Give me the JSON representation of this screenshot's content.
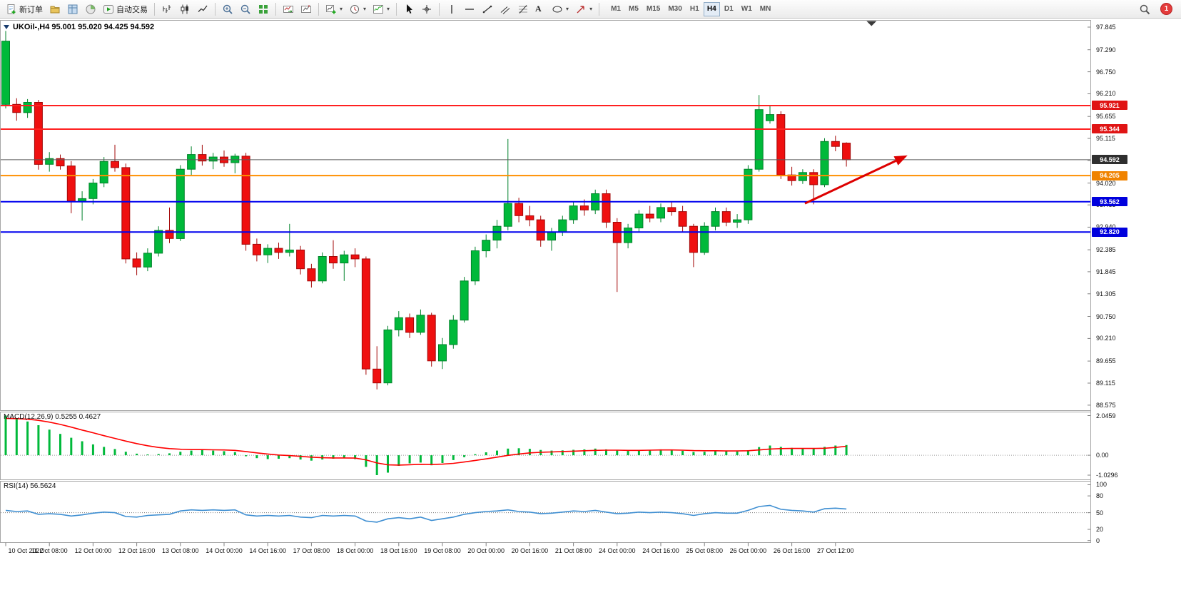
{
  "toolbar": {
    "items": [
      {
        "name": "new-order",
        "icon": "new-order",
        "label": "新订单"
      },
      {
        "name": "navigator",
        "icon": "navigator"
      },
      {
        "name": "market-watch",
        "icon": "market-watch"
      },
      {
        "name": "strategy-tester",
        "icon": "strategy-tester"
      },
      {
        "name": "auto-trading",
        "icon": "auto-trading",
        "label": "自动交易"
      },
      {
        "sep": true
      },
      {
        "name": "bar-chart-mode",
        "icon": "bar-chart"
      },
      {
        "name": "candlestick-mode",
        "icon": "candlestick"
      },
      {
        "name": "line-chart-mode",
        "icon": "line-chart"
      },
      {
        "sep": true
      },
      {
        "name": "zoom-in",
        "icon": "zoom-in"
      },
      {
        "name": "zoom-out",
        "icon": "zoom-out"
      },
      {
        "name": "tile-windows",
        "icon": "tile-windows"
      },
      {
        "sep": true
      },
      {
        "name": "auto-scroll",
        "icon": "auto-scroll"
      },
      {
        "name": "chart-shift",
        "icon": "chart-shift"
      },
      {
        "sep": true
      },
      {
        "name": "new-chart",
        "icon": "new-chart",
        "caret": true
      },
      {
        "name": "profiles",
        "icon": "clock",
        "caret": true
      },
      {
        "name": "indicators",
        "icon": "indicators",
        "caret": true
      },
      {
        "sep": true
      },
      {
        "name": "cursor-tool",
        "icon": "cursor"
      },
      {
        "name": "crosshair-tool",
        "icon": "crosshair"
      },
      {
        "sep": true
      },
      {
        "name": "vertical-line-tool",
        "icon": "vline"
      },
      {
        "name": "horizontal-line-tool",
        "icon": "hline"
      },
      {
        "name": "trendline-tool",
        "icon": "trendline"
      },
      {
        "name": "channel-tool",
        "icon": "channel"
      },
      {
        "name": "fibonacci-tool",
        "icon": "fibo"
      },
      {
        "name": "text-tool",
        "label": "A"
      },
      {
        "name": "shapes-tool",
        "icon": "ellipse",
        "caret": true
      },
      {
        "name": "arrows-tool",
        "icon": "arrow",
        "caret": true
      },
      {
        "sep": true
      }
    ],
    "timeframes": [
      "M1",
      "M5",
      "M15",
      "M30",
      "H1",
      "H4",
      "D1",
      "W1",
      "MN"
    ],
    "active_timeframe": "H4",
    "notification_count": "1"
  },
  "chart": {
    "title": "UKOil-,H4 95.001 95.020 94.425 94.592"
  },
  "chart_data": {
    "type": "candlestick",
    "symbol": "UKOil-",
    "period": "H4",
    "ohlc_display": {
      "open": "95.001",
      "high": "95.020",
      "low": "94.425",
      "close": "94.592"
    },
    "ylim": [
      88.45,
      98.02
    ],
    "price_axis_ticks": [
      "97.845",
      "97.290",
      "96.750",
      "96.210",
      "95.655",
      "95.115",
      "94.575",
      "94.020",
      "93.485",
      "92.940",
      "92.385",
      "91.845",
      "91.305",
      "90.750",
      "90.210",
      "89.655",
      "89.115",
      "88.575"
    ],
    "x_labels": [
      "10 Oct 2022",
      "11 Oct 08:00",
      "12 Oct 00:00",
      "12 Oct 16:00",
      "13 Oct 08:00",
      "14 Oct 00:00",
      "14 Oct 16:00",
      "17 Oct 08:00",
      "18 Oct 00:00",
      "18 Oct 16:00",
      "19 Oct 08:00",
      "20 Oct 00:00",
      "20 Oct 16:00",
      "21 Oct 08:00",
      "24 Oct 00:00",
      "24 Oct 16:00",
      "25 Oct 08:00",
      "26 Oct 00:00",
      "26 Oct 16:00",
      "27 Oct 12:00"
    ],
    "label_every_n_bars": 4,
    "candles": [
      [
        95.95,
        97.75,
        95.85,
        97.5
      ],
      [
        95.95,
        96.1,
        95.55,
        95.75
      ],
      [
        95.75,
        96.08,
        95.62,
        96.0
      ],
      [
        96.0,
        96.06,
        94.35,
        94.48
      ],
      [
        94.48,
        94.78,
        94.3,
        94.62
      ],
      [
        94.62,
        94.72,
        94.35,
        94.44
      ],
      [
        94.44,
        94.56,
        93.28,
        93.58
      ],
      [
        93.58,
        93.82,
        93.1,
        93.64
      ],
      [
        93.64,
        94.12,
        93.5,
        94.02
      ],
      [
        94.02,
        94.66,
        93.92,
        94.55
      ],
      [
        94.55,
        94.96,
        94.3,
        94.4
      ],
      [
        94.4,
        94.5,
        92.05,
        92.16
      ],
      [
        92.16,
        92.32,
        91.76,
        91.96
      ],
      [
        91.96,
        92.42,
        91.86,
        92.3
      ],
      [
        92.3,
        92.96,
        92.22,
        92.86
      ],
      [
        92.86,
        93.42,
        92.55,
        92.66
      ],
      [
        92.66,
        94.46,
        92.6,
        94.36
      ],
      [
        94.36,
        94.92,
        94.22,
        94.72
      ],
      [
        94.72,
        94.96,
        94.45,
        94.56
      ],
      [
        94.56,
        94.76,
        94.36,
        94.66
      ],
      [
        94.66,
        94.82,
        94.42,
        94.52
      ],
      [
        94.52,
        94.74,
        94.26,
        94.68
      ],
      [
        94.68,
        94.76,
        92.36,
        92.52
      ],
      [
        92.52,
        92.66,
        92.1,
        92.26
      ],
      [
        92.26,
        92.52,
        92.06,
        92.42
      ],
      [
        92.42,
        92.56,
        92.16,
        92.32
      ],
      [
        92.32,
        93.02,
        92.22,
        92.38
      ],
      [
        92.38,
        92.48,
        91.78,
        91.92
      ],
      [
        91.92,
        92.04,
        91.46,
        91.62
      ],
      [
        91.62,
        92.32,
        91.56,
        92.22
      ],
      [
        92.22,
        92.62,
        91.92,
        92.06
      ],
      [
        92.06,
        92.36,
        91.62,
        92.26
      ],
      [
        92.26,
        92.42,
        91.96,
        92.16
      ],
      [
        92.16,
        92.22,
        89.32,
        89.46
      ],
      [
        89.46,
        90.02,
        88.96,
        89.12
      ],
      [
        89.12,
        90.52,
        89.06,
        90.42
      ],
      [
        90.42,
        90.88,
        90.26,
        90.72
      ],
      [
        90.72,
        90.82,
        90.22,
        90.36
      ],
      [
        90.36,
        90.92,
        90.3,
        90.78
      ],
      [
        90.78,
        90.84,
        89.52,
        89.66
      ],
      [
        89.66,
        90.22,
        89.46,
        90.06
      ],
      [
        90.06,
        90.78,
        89.96,
        90.66
      ],
      [
        90.66,
        91.72,
        90.6,
        91.62
      ],
      [
        91.62,
        92.46,
        91.52,
        92.36
      ],
      [
        92.36,
        92.76,
        92.2,
        92.62
      ],
      [
        92.62,
        93.12,
        92.42,
        92.96
      ],
      [
        92.96,
        95.1,
        92.86,
        93.52
      ],
      [
        93.52,
        93.66,
        93.06,
        93.22
      ],
      [
        93.22,
        93.46,
        92.96,
        93.12
      ],
      [
        93.12,
        93.22,
        92.46,
        92.62
      ],
      [
        92.62,
        92.92,
        92.36,
        92.82
      ],
      [
        92.82,
        93.22,
        92.72,
        93.12
      ],
      [
        93.12,
        93.56,
        93.02,
        93.46
      ],
      [
        93.46,
        93.62,
        93.22,
        93.36
      ],
      [
        93.36,
        93.86,
        93.26,
        93.76
      ],
      [
        93.76,
        93.86,
        92.92,
        93.06
      ],
      [
        93.06,
        93.16,
        91.35,
        92.56
      ],
      [
        92.56,
        93.02,
        92.42,
        92.92
      ],
      [
        92.92,
        93.36,
        92.82,
        93.26
      ],
      [
        93.26,
        93.46,
        93.06,
        93.16
      ],
      [
        93.16,
        93.52,
        93.06,
        93.42
      ],
      [
        93.42,
        93.56,
        93.22,
        93.32
      ],
      [
        93.32,
        93.46,
        92.82,
        92.96
      ],
      [
        92.96,
        93.02,
        91.96,
        92.32
      ],
      [
        92.32,
        93.06,
        92.26,
        92.96
      ],
      [
        92.96,
        93.42,
        92.86,
        93.32
      ],
      [
        93.32,
        93.42,
        92.96,
        93.06
      ],
      [
        93.06,
        93.26,
        92.92,
        93.12
      ],
      [
        93.12,
        94.46,
        93.02,
        94.36
      ],
      [
        94.36,
        96.18,
        94.3,
        95.82
      ],
      [
        95.55,
        95.92,
        95.48,
        95.7
      ],
      [
        95.7,
        95.78,
        94.12,
        94.22
      ],
      [
        94.22,
        94.42,
        93.96,
        94.08
      ],
      [
        94.08,
        94.36,
        94.0,
        94.28
      ],
      [
        94.28,
        94.36,
        93.5,
        93.98
      ],
      [
        93.98,
        95.12,
        93.92,
        95.04
      ],
      [
        95.04,
        95.18,
        94.8,
        94.92
      ],
      [
        95.001,
        95.02,
        94.425,
        94.592
      ]
    ],
    "hlines": [
      {
        "price": 95.921,
        "label": "95.921",
        "color": "#ff2020",
        "badge": "#e01414",
        "width": 2
      },
      {
        "price": 95.344,
        "label": "95.344",
        "color": "#ff2020",
        "badge": "#e01414",
        "width": 2
      },
      {
        "price": 94.592,
        "label": "94.592",
        "color": "#5a5a5a",
        "badge": "#2f2f2f",
        "width": 1,
        "role": "current"
      },
      {
        "price": 94.205,
        "label": "94.205",
        "color": "#ff8f00",
        "badge": "#f08300",
        "width": 2
      },
      {
        "price": 93.562,
        "label": "93.562",
        "color": "#0000ee",
        "badge": "#0000dd",
        "width": 2
      },
      {
        "price": 92.82,
        "label": "92.820",
        "color": "#0000ee",
        "badge": "#0000dd",
        "width": 2
      }
    ],
    "trend_arrow": {
      "x1_bar": 73.2,
      "y1_price": 93.52,
      "x2_bar": 82.6,
      "y2_price": 94.7,
      "color": "#dd0000"
    },
    "shift_marker_bar": 79.3,
    "colors": {
      "up": "#00b93a",
      "up_dark": "#00822a",
      "down": "#ef1010",
      "down_dark": "#a30808",
      "macd_hist": "#00b93a",
      "macd_signal": "#ff0000",
      "rsi_line": "#3f8fd2"
    },
    "indicators": {
      "macd": {
        "label": "MACD(12,26,9) 0.5255 0.4627",
        "axis": [
          "2.0459",
          "0.00",
          "-1.0296"
        ],
        "ylim": [
          -1.25,
          2.25
        ],
        "values": [
          2.0459,
          1.88,
          1.74,
          1.55,
          1.32,
          1.1,
          0.9,
          0.72,
          0.56,
          0.43,
          0.32,
          0.18,
          0.08,
          0.04,
          0.06,
          0.1,
          0.18,
          0.24,
          0.26,
          0.24,
          0.21,
          0.16,
          -0.05,
          -0.15,
          -0.2,
          -0.18,
          -0.15,
          -0.22,
          -0.28,
          -0.22,
          -0.18,
          -0.15,
          -0.2,
          -0.6,
          -1.0296,
          -0.9,
          -0.55,
          -0.42,
          -0.38,
          -0.52,
          -0.4,
          -0.25,
          -0.1,
          0.05,
          0.15,
          0.24,
          0.34,
          0.36,
          0.33,
          0.27,
          0.24,
          0.25,
          0.28,
          0.3,
          0.34,
          0.3,
          0.24,
          0.22,
          0.25,
          0.28,
          0.3,
          0.28,
          0.23,
          0.17,
          0.18,
          0.22,
          0.21,
          0.19,
          0.26,
          0.42,
          0.5,
          0.43,
          0.38,
          0.36,
          0.34,
          0.43,
          0.5,
          0.5255
        ],
        "signal": [
          1.9,
          1.89,
          1.86,
          1.8,
          1.71,
          1.59,
          1.45,
          1.3,
          1.16,
          1.01,
          0.87,
          0.73,
          0.6,
          0.49,
          0.4,
          0.34,
          0.31,
          0.29,
          0.29,
          0.28,
          0.27,
          0.25,
          0.19,
          0.12,
          0.06,
          0.01,
          -0.02,
          -0.06,
          -0.1,
          -0.13,
          -0.14,
          -0.14,
          -0.15,
          -0.24,
          -0.4,
          -0.5,
          -0.51,
          -0.49,
          -0.47,
          -0.48,
          -0.46,
          -0.42,
          -0.35,
          -0.27,
          -0.19,
          -0.1,
          -0.01,
          0.06,
          0.12,
          0.15,
          0.17,
          0.19,
          0.21,
          0.23,
          0.25,
          0.26,
          0.26,
          0.25,
          0.25,
          0.26,
          0.27,
          0.27,
          0.26,
          0.24,
          0.23,
          0.23,
          0.22,
          0.22,
          0.23,
          0.27,
          0.32,
          0.34,
          0.35,
          0.35,
          0.35,
          0.36,
          0.4,
          0.4627
        ]
      },
      "rsi": {
        "label": "RSI(14) 56.5624",
        "axis": [
          "100",
          "80",
          "50",
          "20",
          "0"
        ],
        "ylim": [
          -3,
          107
        ],
        "level": 50,
        "values": [
          54,
          52,
          53,
          47,
          48,
          47,
          44,
          46,
          49,
          51,
          50,
          43,
          42,
          45,
          46,
          47,
          53,
          55,
          54,
          55,
          54,
          55,
          46,
          44,
          45,
          44,
          45,
          42,
          41,
          45,
          44,
          45,
          44,
          35,
          33,
          39,
          41,
          39,
          42,
          36,
          39,
          42,
          47,
          50,
          52,
          53,
          55,
          52,
          51,
          48,
          49,
          51,
          53,
          52,
          54,
          51,
          48,
          49,
          51,
          50,
          51,
          50,
          48,
          45,
          48,
          50,
          49,
          49,
          54,
          61,
          63,
          56,
          54,
          53,
          51,
          57,
          58,
          56.56
        ]
      }
    }
  }
}
